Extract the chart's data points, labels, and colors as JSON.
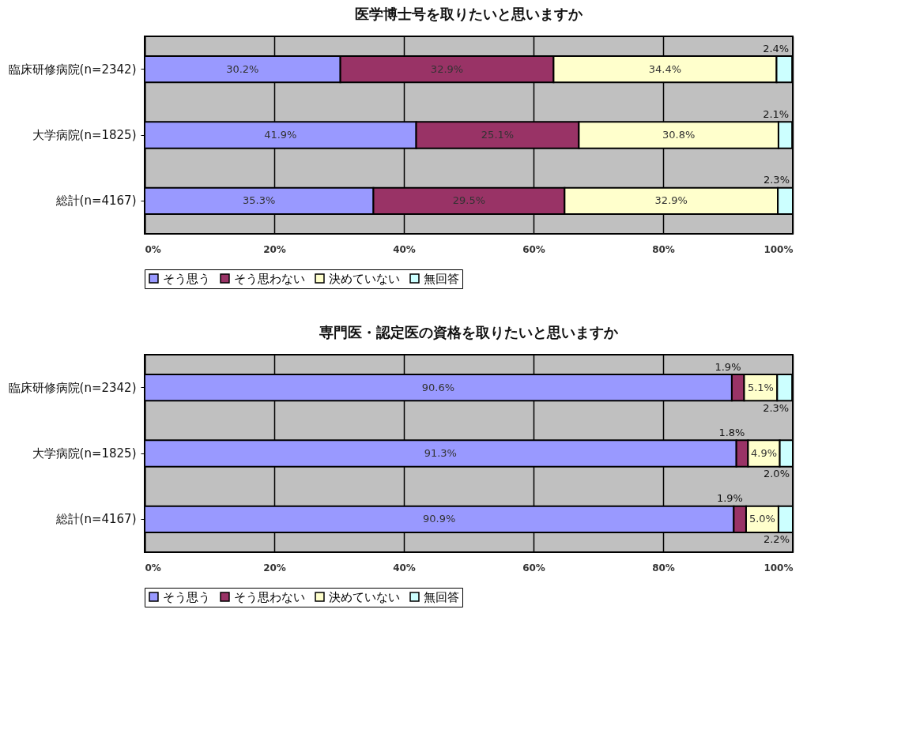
{
  "chart_data": [
    {
      "type": "bar",
      "orientation": "horizontal",
      "stacked": true,
      "title": "医学博士号を取りたいと思いますか",
      "categories": [
        "臨床研修病院(n=2342)",
        "大学病院(n=1825)",
        "総計(n=4167)"
      ],
      "series": [
        {
          "name": "そう思う",
          "color": "#9999ff",
          "values": [
            30.2,
            41.9,
            35.3
          ],
          "value_labels": [
            "30.2%",
            "41.9%",
            "35.3%"
          ]
        },
        {
          "name": "そう思わない",
          "color": "#993366",
          "values": [
            32.9,
            25.1,
            29.5
          ],
          "value_labels": [
            "32.9%",
            "25.1%",
            "29.5%"
          ]
        },
        {
          "name": "決めていない",
          "color": "#ffffcc",
          "values": [
            34.4,
            30.8,
            32.9
          ],
          "value_labels": [
            "34.4%",
            "30.8%",
            "32.9%"
          ]
        },
        {
          "name": "無回答",
          "color": "#ccffff",
          "values": [
            2.4,
            2.1,
            2.3
          ],
          "value_labels": [
            "2.4%",
            "2.1%",
            "2.3%"
          ]
        }
      ],
      "xlim": [
        0,
        100
      ],
      "xticks": [
        {
          "value": 0,
          "label": "0%"
        },
        {
          "value": 20,
          "label": "20%"
        },
        {
          "value": 40,
          "label": "40%"
        },
        {
          "value": 60,
          "label": "60%"
        },
        {
          "value": 80,
          "label": "80%"
        },
        {
          "value": 100,
          "label": "100%"
        }
      ],
      "grid": "x",
      "legend": "bottom"
    },
    {
      "type": "bar",
      "orientation": "horizontal",
      "stacked": true,
      "title": "専門医・認定医の資格を取りたいと思いますか",
      "categories": [
        "臨床研修病院(n=2342)",
        "大学病院(n=1825)",
        "総計(n=4167)"
      ],
      "series": [
        {
          "name": "そう思う",
          "color": "#9999ff",
          "values": [
            90.6,
            91.3,
            90.9
          ],
          "value_labels": [
            "90.6%",
            "91.3%",
            "90.9%"
          ]
        },
        {
          "name": "そう思わない",
          "color": "#993366",
          "values": [
            1.9,
            1.8,
            1.9
          ],
          "value_labels": [
            "1.9%",
            "1.8%",
            "1.9%"
          ]
        },
        {
          "name": "決めていない",
          "color": "#ffffcc",
          "values": [
            5.1,
            4.9,
            5.0
          ],
          "value_labels": [
            "5.1%",
            "4.9%",
            "5.0%"
          ]
        },
        {
          "name": "無回答",
          "color": "#ccffff",
          "values": [
            2.3,
            2.0,
            2.2
          ],
          "value_labels": [
            "2.3%",
            "2.0%",
            "2.2%"
          ]
        }
      ],
      "xlim": [
        0,
        100
      ],
      "xticks": [
        {
          "value": 0,
          "label": "0%"
        },
        {
          "value": 20,
          "label": "20%"
        },
        {
          "value": 40,
          "label": "40%"
        },
        {
          "value": 60,
          "label": "60%"
        },
        {
          "value": 80,
          "label": "80%"
        },
        {
          "value": 100,
          "label": "100%"
        }
      ],
      "grid": "x",
      "legend": "bottom"
    }
  ]
}
